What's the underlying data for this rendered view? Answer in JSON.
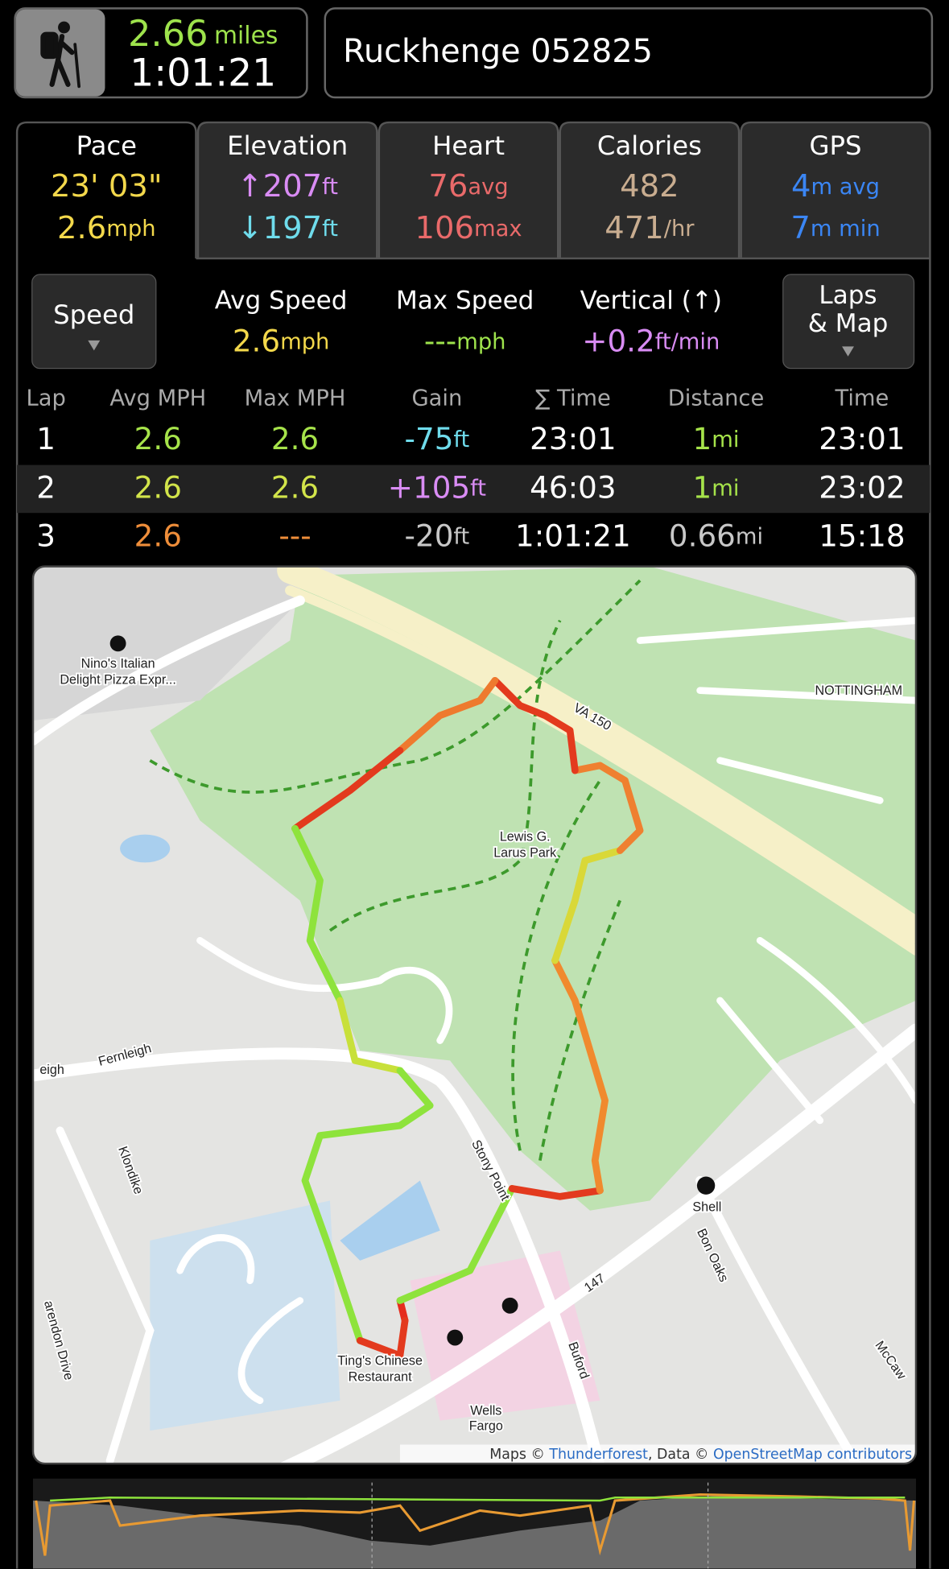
{
  "header": {
    "distance": "2.66",
    "distance_unit": "miles",
    "duration": "1:01:21",
    "title": "Ruckhenge 052825"
  },
  "tabs": [
    {
      "label": "Pace",
      "lines": [
        {
          "value": "23' 03\"",
          "color": "#f3d84b"
        },
        {
          "value": "2.6",
          "unit": "mph",
          "color": "#f3d84b"
        }
      ]
    },
    {
      "label": "Elevation",
      "lines": [
        {
          "value": "↑207",
          "unit": "ft",
          "color": "#d98cf4"
        },
        {
          "value": "↓197",
          "unit": "ft",
          "color": "#6fdcec"
        }
      ]
    },
    {
      "label": "Heart",
      "lines": [
        {
          "value": "76",
          "unit": "avg",
          "color": "#e96a6a"
        },
        {
          "value": "106",
          "unit": "max",
          "color": "#e96a6a"
        }
      ]
    },
    {
      "label": "Calories",
      "lines": [
        {
          "value": "482",
          "color": "#c9ad90"
        },
        {
          "value": "471",
          "unit": "/hr",
          "color": "#c9ad90"
        }
      ]
    },
    {
      "label": "GPS",
      "lines": [
        {
          "value": "4",
          "unit": "m avg",
          "color": "#3b86f4"
        },
        {
          "value": "7",
          "unit": "m min",
          "color": "#3b86f4"
        }
      ]
    }
  ],
  "speed_button": "Speed",
  "laps_button": [
    "Laps",
    "& Map"
  ],
  "stats": [
    {
      "label": "Avg Speed",
      "value": "2.6",
      "unit": "mph",
      "color": "#f3d84b"
    },
    {
      "label": "Max Speed",
      "value": "---",
      "unit": "mph",
      "color": "#9ee34c"
    },
    {
      "label": "Vertical (↑)",
      "value": "+0.2",
      "unit": "ft/min",
      "color": "#d98cf4"
    }
  ],
  "laps": {
    "columns": [
      "Lap",
      "Avg MPH",
      "Max MPH",
      "Gain",
      "∑ Time",
      "Distance",
      "Time"
    ],
    "rows": [
      [
        {
          "value": "1",
          "color": "#ffffff"
        },
        {
          "value": "2.6",
          "color": "#a6e34a"
        },
        {
          "value": "2.6",
          "color": "#a6e34a"
        },
        {
          "value": "-75",
          "unit": "ft",
          "color": "#6fdcec"
        },
        {
          "value": "23:01",
          "color": "#ffffff"
        },
        {
          "value": "1",
          "unit": "mi",
          "color": "#a6e34a"
        },
        {
          "value": "23:01",
          "color": "#ffffff"
        }
      ],
      [
        {
          "value": "2",
          "color": "#ffffff"
        },
        {
          "value": "2.6",
          "color": "#d2e44a"
        },
        {
          "value": "2.6",
          "color": "#d2e44a"
        },
        {
          "value": "+105",
          "unit": "ft",
          "color": "#d98cf4"
        },
        {
          "value": "46:03",
          "color": "#ffffff"
        },
        {
          "value": "1",
          "unit": "mi",
          "color": "#a6e34a"
        },
        {
          "value": "23:02",
          "color": "#ffffff"
        }
      ],
      [
        {
          "value": "3",
          "color": "#ffffff"
        },
        {
          "value": "2.6",
          "color": "#ef8e3a"
        },
        {
          "value": "---",
          "color": "#ef8e3a"
        },
        {
          "value": "-20",
          "unit": "ft",
          "color": "#c8c8c8"
        },
        {
          "value": "1:01:21",
          "color": "#ffffff"
        },
        {
          "value": "0.66",
          "unit": "mi",
          "color": "#c8c8c8"
        },
        {
          "value": "15:18",
          "color": "#ffffff"
        }
      ]
    ]
  },
  "map": {
    "labels": [
      "Nino's Italian",
      "Delight Pizza Expr...",
      "NOTTINGHAM",
      "VA 150",
      "Lewis G.",
      "Larus Park",
      "Fernleigh",
      "eigh",
      "Klondike",
      "Stony Point",
      "Shell",
      "Bon Oaks",
      "147",
      "Buford",
      "Ting's Chinese",
      "Restaurant",
      "Wells",
      "Fargo",
      "McCaw",
      "arendon Drive"
    ],
    "attribution": [
      "Maps © ",
      "Thunderforest",
      ", Data © ",
      "OpenStreetMap contributors"
    ]
  }
}
